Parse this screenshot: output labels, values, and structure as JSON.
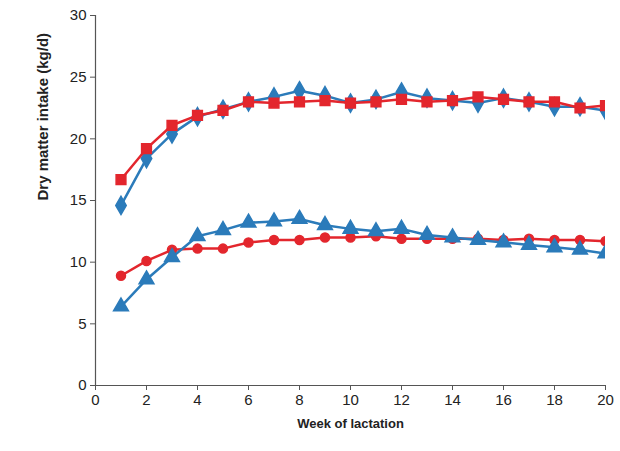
{
  "chart_data": {
    "type": "line",
    "x_label": "Week of lactation",
    "y_label": "Dry matter intake (kg/d)",
    "x": [
      1,
      2,
      3,
      4,
      5,
      6,
      7,
      8,
      9,
      10,
      11,
      12,
      13,
      14,
      15,
      16,
      17,
      18,
      19,
      20
    ],
    "series": [
      {
        "color": "#2b7bba",
        "marker": "diamond",
        "values": [
          14.6,
          18.4,
          20.4,
          21.8,
          22.4,
          23.0,
          23.4,
          23.9,
          23.5,
          22.9,
          23.2,
          23.8,
          23.3,
          23.1,
          22.9,
          23.3,
          23.0,
          22.6,
          22.6,
          22.3
        ]
      },
      {
        "color": "#e3262d",
        "marker": "square",
        "values": [
          16.7,
          19.2,
          21.1,
          21.9,
          22.3,
          23.0,
          22.9,
          23.0,
          23.1,
          22.9,
          23.0,
          23.2,
          23.0,
          23.1,
          23.4,
          23.2,
          23.0,
          23.0,
          22.5,
          22.7
        ]
      },
      {
        "color": "#e3262d",
        "marker": "circle",
        "values": [
          8.9,
          10.1,
          11.0,
          11.1,
          11.1,
          11.6,
          11.8,
          11.8,
          12.0,
          12.0,
          12.1,
          11.9,
          11.9,
          11.9,
          11.9,
          11.8,
          11.9,
          11.8,
          11.8,
          11.7
        ]
      },
      {
        "color": "#2b7bba",
        "marker": "triangle",
        "values": [
          6.4,
          8.6,
          10.4,
          12.1,
          12.6,
          13.2,
          13.3,
          13.5,
          13.0,
          12.7,
          12.5,
          12.7,
          12.2,
          12.0,
          11.8,
          11.6,
          11.4,
          11.2,
          11.0,
          10.7
        ]
      }
    ],
    "xlim": [
      0,
      20
    ],
    "xticks": [
      0,
      2,
      4,
      6,
      8,
      10,
      12,
      14,
      16,
      18,
      20
    ],
    "ylim": [
      0,
      30
    ],
    "yticks": [
      0,
      5,
      10,
      15,
      20,
      25,
      30
    ],
    "grid": false
  }
}
